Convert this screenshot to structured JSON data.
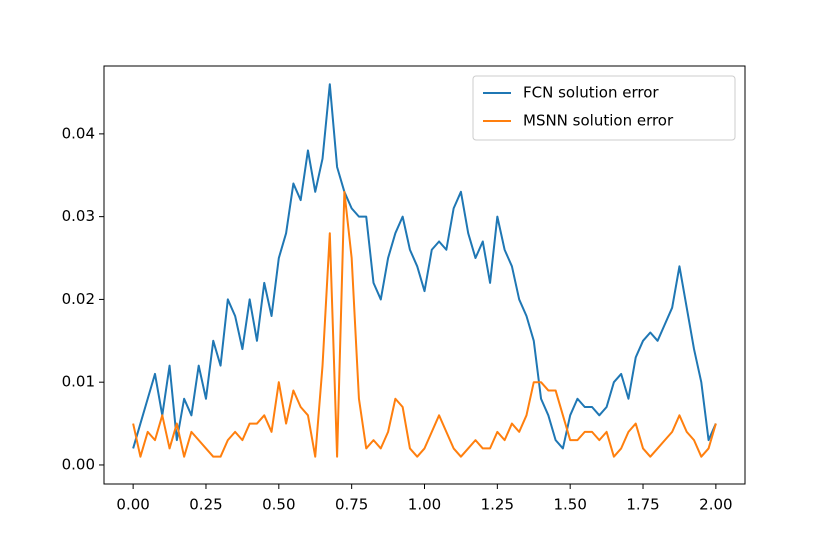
{
  "chart_data": {
    "type": "line",
    "x": [
      0,
      0.025,
      0.05,
      0.075,
      0.1,
      0.125,
      0.15,
      0.175,
      0.2,
      0.225,
      0.25,
      0.275,
      0.3,
      0.325,
      0.35,
      0.375,
      0.4,
      0.425,
      0.45,
      0.475,
      0.5,
      0.525,
      0.55,
      0.575,
      0.6,
      0.625,
      0.65,
      0.675,
      0.7,
      0.725,
      0.75,
      0.775,
      0.8,
      0.825,
      0.85,
      0.875,
      0.9,
      0.925,
      0.95,
      0.975,
      1.0,
      1.025,
      1.05,
      1.075,
      1.1,
      1.125,
      1.15,
      1.175,
      1.2,
      1.225,
      1.25,
      1.275,
      1.3,
      1.325,
      1.35,
      1.375,
      1.4,
      1.425,
      1.45,
      1.475,
      1.5,
      1.525,
      1.55,
      1.575,
      1.6,
      1.625,
      1.65,
      1.675,
      1.7,
      1.725,
      1.75,
      1.775,
      1.8,
      1.825,
      1.85,
      1.875,
      1.9,
      1.925,
      1.95,
      1.975,
      2.0
    ],
    "series": [
      {
        "name": "FCN solution error",
        "color": "#1f77b4",
        "values": [
          0.002,
          0.005,
          0.008,
          0.011,
          0.006,
          0.012,
          0.003,
          0.008,
          0.006,
          0.012,
          0.008,
          0.015,
          0.012,
          0.02,
          0.018,
          0.014,
          0.02,
          0.015,
          0.022,
          0.018,
          0.025,
          0.028,
          0.034,
          0.032,
          0.038,
          0.033,
          0.037,
          0.046,
          0.036,
          0.033,
          0.031,
          0.03,
          0.03,
          0.022,
          0.02,
          0.025,
          0.028,
          0.03,
          0.026,
          0.024,
          0.021,
          0.026,
          0.027,
          0.026,
          0.031,
          0.033,
          0.028,
          0.025,
          0.027,
          0.022,
          0.03,
          0.026,
          0.024,
          0.02,
          0.018,
          0.015,
          0.008,
          0.006,
          0.003,
          0.002,
          0.006,
          0.008,
          0.007,
          0.007,
          0.006,
          0.007,
          0.01,
          0.011,
          0.008,
          0.013,
          0.015,
          0.016,
          0.015,
          0.017,
          0.019,
          0.024,
          0.019,
          0.014,
          0.01,
          0.003,
          0.005
        ]
      },
      {
        "name": "MSNN solution error",
        "color": "#ff7f0e",
        "values": [
          0.005,
          0.001,
          0.004,
          0.003,
          0.006,
          0.002,
          0.005,
          0.001,
          0.004,
          0.003,
          0.002,
          0.001,
          0.001,
          0.003,
          0.004,
          0.003,
          0.005,
          0.005,
          0.006,
          0.004,
          0.01,
          0.005,
          0.009,
          0.007,
          0.006,
          0.001,
          0.012,
          0.028,
          0.001,
          0.033,
          0.025,
          0.008,
          0.002,
          0.003,
          0.002,
          0.004,
          0.008,
          0.007,
          0.002,
          0.001,
          0.002,
          0.004,
          0.006,
          0.004,
          0.002,
          0.001,
          0.002,
          0.003,
          0.002,
          0.002,
          0.004,
          0.003,
          0.005,
          0.004,
          0.006,
          0.01,
          0.01,
          0.009,
          0.009,
          0.006,
          0.003,
          0.003,
          0.004,
          0.004,
          0.003,
          0.004,
          0.001,
          0.002,
          0.004,
          0.005,
          0.002,
          0.001,
          0.002,
          0.003,
          0.004,
          0.006,
          0.004,
          0.003,
          0.001,
          0.002,
          0.005
        ]
      }
    ],
    "xlim": [
      -0.1,
      2.1
    ],
    "ylim": [
      -0.0023,
      0.0482
    ],
    "xticks": [
      {
        "value": 0,
        "label": "0.00"
      },
      {
        "value": 0.25,
        "label": "0.25"
      },
      {
        "value": 0.5,
        "label": "0.50"
      },
      {
        "value": 0.75,
        "label": "0.75"
      },
      {
        "value": 1,
        "label": "1.00"
      },
      {
        "value": 1.25,
        "label": "1.25"
      },
      {
        "value": 1.5,
        "label": "1.50"
      },
      {
        "value": 1.75,
        "label": "1.75"
      },
      {
        "value": 2,
        "label": "2.00"
      }
    ],
    "yticks": [
      {
        "value": 0,
        "label": "0.00"
      },
      0.01,
      0.02,
      0.03,
      0.04
    ],
    "legend": "upper right"
  }
}
